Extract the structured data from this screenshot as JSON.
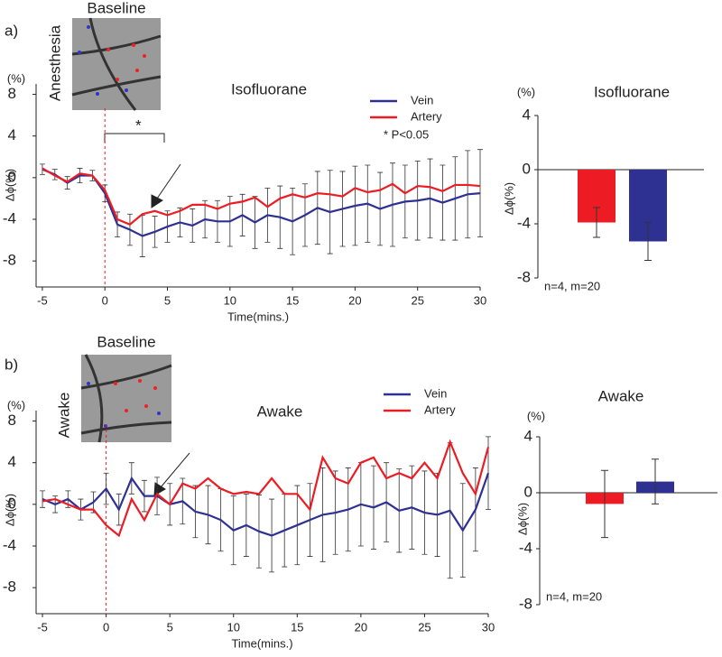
{
  "chart_data": [
    {
      "type": "line",
      "panel_label": "a)",
      "inset_title": "Baseline",
      "inset_label": "Anesthesia",
      "title": "Isofluorane",
      "unit_label": "(%)",
      "ylabel": "Δϕ(%)",
      "xlabel": "Time(mins.)",
      "annotations": [
        "* P<0.05",
        "*"
      ],
      "marker_x": 0,
      "x": [
        -5,
        -4,
        -3,
        -2,
        -1,
        0,
        1,
        2,
        3,
        4,
        5,
        6,
        7,
        8,
        9,
        10,
        11,
        12,
        13,
        14,
        15,
        16,
        17,
        18,
        19,
        20,
        21,
        22,
        23,
        24,
        25,
        26,
        27,
        28,
        29,
        30
      ],
      "xlim": [
        -5.5,
        30
      ],
      "xticks": [
        -5,
        0,
        5,
        10,
        15,
        20,
        25,
        30
      ],
      "ylim": [
        -10.5,
        9
      ],
      "yticks": [
        -8,
        -4,
        0,
        4,
        8
      ],
      "series": [
        {
          "name": "Vein",
          "color": "#2e3192",
          "values": [
            0.8,
            0.3,
            -0.5,
            0.2,
            0.2,
            -1.5,
            -4.5,
            -5.0,
            -5.6,
            -5.2,
            -4.7,
            -4.3,
            -4.6,
            -4.0,
            -4.2,
            -4.2,
            -3.6,
            -4.3,
            -3.6,
            -3.8,
            -4.2,
            -3.6,
            -2.9,
            -3.3,
            -3.0,
            -2.7,
            -2.5,
            -3.0,
            -2.6,
            -2.3,
            -2.2,
            -2.0,
            -2.4,
            -2.0,
            -1.6,
            -1.5
          ],
          "errors": [
            0.5,
            0.5,
            0.6,
            0.7,
            0.5,
            0.8,
            1.2,
            1.5,
            2.0,
            1.5,
            1.5,
            1.4,
            1.6,
            1.8,
            2.0,
            2.4,
            2.0,
            2.5,
            2.6,
            3.0,
            3.2,
            3.0,
            3.5,
            4.0,
            3.6,
            3.8,
            3.7,
            3.5,
            4.0,
            3.5,
            3.8,
            3.8,
            3.6,
            4.0,
            4.2,
            4.2
          ]
        },
        {
          "name": "Artery",
          "color": "#ed1c24",
          "values": [
            0.9,
            0.2,
            -0.4,
            0.4,
            0.2,
            -1.2,
            -4.0,
            -4.5,
            -3.5,
            -3.2,
            -3.6,
            -3.2,
            -2.6,
            -2.6,
            -3.0,
            -2.5,
            -2.3,
            -1.9,
            -2.8,
            -2.0,
            -1.6,
            -1.9,
            -1.5,
            -1.6,
            -1.8,
            -1.0,
            -1.4,
            -1.2,
            -0.6,
            -1.5,
            -0.8,
            -0.9,
            -1.3,
            -0.7,
            -0.7,
            -0.8
          ]
        }
      ]
    },
    {
      "type": "bar",
      "title": "Isofluorane",
      "unit_label": "(%)",
      "ylabel": "Δϕ(%)",
      "annotations": [
        "n=4, m=20"
      ],
      "categories": [
        null,
        null
      ],
      "values": [
        -3.9,
        -5.3
      ],
      "errors": [
        1.1,
        1.4
      ],
      "colors": [
        "#ed1c24",
        "#2e3192"
      ],
      "ylim": [
        -8,
        4
      ],
      "yticks": [
        -8,
        -4,
        0,
        4
      ]
    },
    {
      "type": "line",
      "panel_label": "b)",
      "inset_title": "Baseline",
      "inset_label": "Awake",
      "title": "Awake",
      "unit_label": "(%)",
      "ylabel": "Δϕ(%)",
      "xlabel": "Time(mins.)",
      "annotations": [],
      "marker_x": 0,
      "x": [
        -5,
        -4,
        -3,
        -2,
        -1,
        0,
        1,
        2,
        3,
        4,
        5,
        6,
        7,
        8,
        9,
        10,
        11,
        12,
        13,
        14,
        15,
        16,
        17,
        18,
        19,
        20,
        21,
        22,
        23,
        24,
        25,
        26,
        27,
        28,
        29,
        30
      ],
      "xlim": [
        -5.5,
        30
      ],
      "xticks": [
        -5,
        0,
        5,
        10,
        15,
        20,
        25,
        30
      ],
      "ylim": [
        -10.5,
        9
      ],
      "yticks": [
        -8,
        -4,
        0,
        4,
        8
      ],
      "series": [
        {
          "name": "Vein",
          "color": "#2e3192",
          "values": [
            0.5,
            0.0,
            0.5,
            -0.5,
            0.2,
            1.5,
            -0.5,
            2.5,
            0.8,
            0.8,
            0.0,
            0.3,
            -0.7,
            -1.0,
            -1.5,
            -2.5,
            -2.0,
            -2.6,
            -3.0,
            -2.5,
            -2.0,
            -1.5,
            -1.0,
            -0.8,
            -0.5,
            0.0,
            -0.3,
            0.2,
            -0.6,
            -0.3,
            -0.8,
            -1.0,
            -0.6,
            -2.5,
            -0.5,
            3.0
          ],
          "errors": [
            0.8,
            0.8,
            0.8,
            1.0,
            1.0,
            1.5,
            1.5,
            1.5,
            1.5,
            1.8,
            2.0,
            2.2,
            2.5,
            2.8,
            3.0,
            3.3,
            3.0,
            3.5,
            3.5,
            3.5,
            3.8,
            3.5,
            4.5,
            4.0,
            4.0,
            4.0,
            4.0,
            3.8,
            4.0,
            4.0,
            4.0,
            4.0,
            6.5,
            4.5,
            4.0,
            3.5
          ]
        },
        {
          "name": "Artery",
          "color": "#ed1c24",
          "values": [
            0.3,
            0.5,
            0.0,
            -0.5,
            -0.5,
            -2.0,
            -3.0,
            0.5,
            -1.5,
            1.0,
            0.0,
            2.0,
            1.5,
            2.5,
            1.5,
            1.0,
            1.2,
            1.0,
            2.5,
            1.0,
            1.0,
            -0.5,
            4.5,
            2.5,
            2.0,
            4.0,
            4.5,
            2.5,
            3.0,
            2.5,
            4.0,
            2.5,
            6.0,
            3.0,
            1.0,
            5.5
          ]
        }
      ]
    },
    {
      "type": "bar",
      "title": "Awake",
      "unit_label": "(%)",
      "ylabel": "Δϕ(%)",
      "annotations": [
        "n=4, m=20"
      ],
      "categories": [
        null,
        null
      ],
      "values": [
        -0.8,
        0.8
      ],
      "errors": [
        2.4,
        1.6
      ],
      "colors": [
        "#ed1c24",
        "#2e3192"
      ],
      "ylim": [
        -8,
        4
      ],
      "yticks": [
        -8,
        -4,
        0,
        4
      ]
    }
  ]
}
